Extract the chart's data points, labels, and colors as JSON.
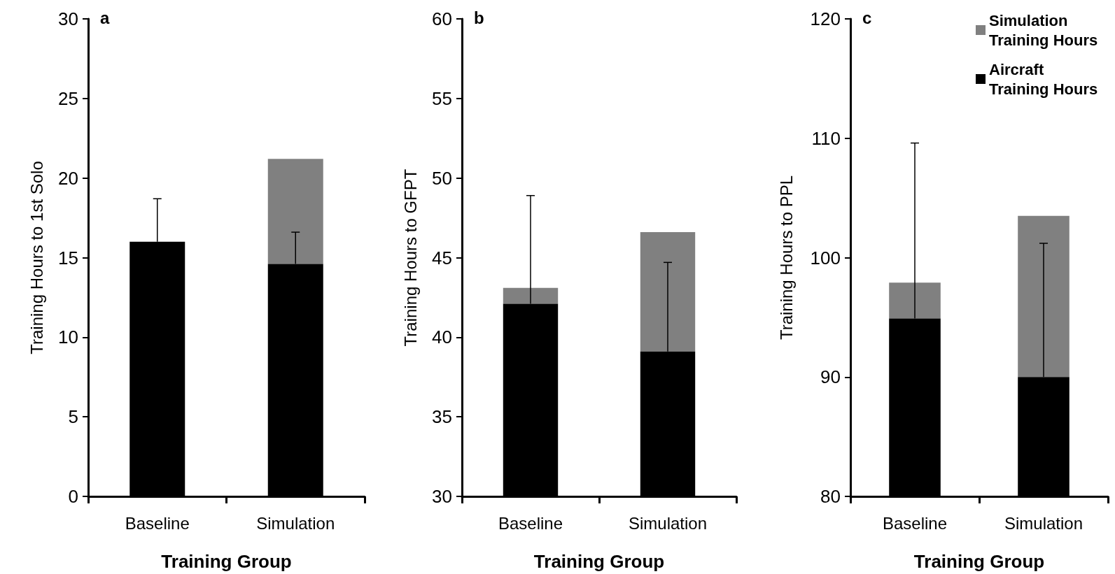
{
  "chart_data": [
    {
      "type": "bar",
      "title": "a",
      "xlabel": "Training Group",
      "ylabel": "Training Hours to 1st Solo",
      "categories": [
        "Baseline",
        "Simulation"
      ],
      "stacked": true,
      "ylim": [
        0,
        30
      ],
      "yticks": [
        0,
        5,
        10,
        15,
        20,
        25,
        30
      ],
      "grid": false,
      "legend": false,
      "series": [
        {
          "color": "#000000",
          "values": [
            16.0,
            14.6
          ],
          "errors": [
            [
              16.0,
              18.7
            ],
            [
              14.6,
              16.6
            ]
          ]
        },
        {
          "color": "#808080",
          "values": [
            null,
            6.6
          ],
          "base": [
            null,
            14.6
          ]
        }
      ]
    },
    {
      "type": "bar",
      "title": "b",
      "xlabel": "Training Group",
      "ylabel": "Training Hours to GFPT",
      "categories": [
        "Baseline",
        "Simulation"
      ],
      "stacked": true,
      "ylim": [
        30,
        60
      ],
      "yticks": [
        30,
        35,
        40,
        45,
        50,
        55,
        60
      ],
      "grid": false,
      "legend": false,
      "series": [
        {
          "color": "#000000",
          "values": [
            42.1,
            39.1
          ],
          "errors": [
            [
              42.1,
              48.9
            ],
            [
              39.1,
              44.7
            ]
          ]
        },
        {
          "color": "#808080",
          "values": [
            1.0,
            7.5
          ],
          "base": [
            42.1,
            39.1
          ]
        }
      ]
    },
    {
      "type": "bar",
      "title": "c",
      "xlabel": "Training Group",
      "ylabel": "Training Hours to PPL",
      "categories": [
        "Baseline",
        "Simulation"
      ],
      "stacked": true,
      "ylim": [
        80,
        120
      ],
      "yticks": [
        80,
        90,
        100,
        110,
        120
      ],
      "grid": false,
      "legend": "top right",
      "series": [
        {
          "name": "Aircraft Training Hours",
          "color": "#000000",
          "values": [
            94.9,
            90.0
          ],
          "errors": [
            [
              94.9,
              109.6
            ],
            [
              90.0,
              101.2
            ]
          ]
        },
        {
          "name": "Simulation Training Hours",
          "color": "#808080",
          "values": [
            3.0,
            13.5
          ],
          "base": [
            94.9,
            90.0
          ]
        }
      ]
    }
  ]
}
